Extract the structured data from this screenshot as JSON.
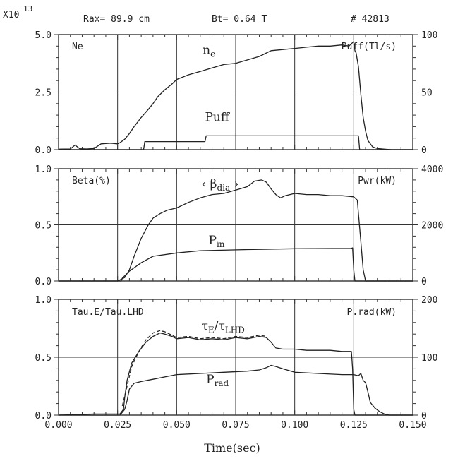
{
  "header": {
    "exponent_base": "X10",
    "exponent_power": "13",
    "rax": "Rax= 89.9 cm",
    "bt": "Bt= 0.64 T",
    "shot": "# 42813"
  },
  "chart_data": [
    {
      "type": "line",
      "panel": "top",
      "corner_left": "Ne",
      "corner_right": "Puff(Tl/s)",
      "xlim": [
        0.0,
        0.15
      ],
      "ylim_left": [
        0.0,
        5.0
      ],
      "ylim_right": [
        0,
        100
      ],
      "ytick_labels_left": [
        "0.0",
        "2.5",
        "5.0"
      ],
      "ytick_labels_right": [
        "0",
        "50",
        "100"
      ],
      "series": [
        {
          "name": "ne",
          "label_main": "n",
          "label_sub": "e",
          "axis": "left",
          "x": [
            0.0,
            0.005,
            0.007,
            0.009,
            0.012,
            0.015,
            0.018,
            0.022,
            0.025,
            0.026,
            0.028,
            0.03,
            0.032,
            0.035,
            0.038,
            0.04,
            0.042,
            0.045,
            0.048,
            0.05,
            0.055,
            0.06,
            0.065,
            0.07,
            0.075,
            0.08,
            0.085,
            0.09,
            0.095,
            0.1,
            0.105,
            0.11,
            0.115,
            0.12,
            0.123,
            0.125,
            0.1255,
            0.126,
            0.127,
            0.128,
            0.129,
            0.13,
            0.131,
            0.133,
            0.135,
            0.138,
            0.141,
            0.15
          ],
          "y": [
            0.02,
            0.03,
            0.2,
            0.04,
            0.03,
            0.05,
            0.25,
            0.28,
            0.25,
            0.3,
            0.45,
            0.7,
            1.0,
            1.4,
            1.75,
            2.0,
            2.3,
            2.6,
            2.85,
            3.05,
            3.25,
            3.4,
            3.55,
            3.7,
            3.75,
            3.9,
            4.05,
            4.3,
            4.35,
            4.4,
            4.45,
            4.5,
            4.5,
            4.55,
            4.5,
            4.7,
            4.3,
            4.2,
            3.6,
            2.4,
            1.4,
            0.8,
            0.4,
            0.12,
            0.05,
            0.02,
            0.0,
            0.0
          ]
        },
        {
          "name": "Puff",
          "label_main": "Puff",
          "label_sub": "",
          "axis": "right",
          "x": [
            0.0,
            0.036,
            0.0365,
            0.062,
            0.0625,
            0.127,
            0.1275,
            0.15
          ],
          "y": [
            0,
            0,
            7,
            7,
            12,
            12,
            0,
            0
          ]
        }
      ]
    },
    {
      "type": "line",
      "panel": "middle",
      "corner_left": "Beta(%)",
      "corner_right": "Pwr(kW)",
      "xlim": [
        0.0,
        0.15
      ],
      "ylim_left": [
        0.0,
        1.0
      ],
      "ylim_right": [
        0,
        4000
      ],
      "ytick_labels_left": [
        "0.0",
        "0.5",
        "1.0"
      ],
      "ytick_labels_right": [
        "0",
        "2000",
        "4000"
      ],
      "series": [
        {
          "name": "βdia",
          "label_main": "‹ β",
          "label_sub": "dia",
          "label_after": " ›",
          "axis": "left",
          "x": [
            0.0,
            0.025,
            0.028,
            0.03,
            0.032,
            0.035,
            0.038,
            0.04,
            0.043,
            0.046,
            0.05,
            0.055,
            0.06,
            0.065,
            0.07,
            0.075,
            0.08,
            0.083,
            0.086,
            0.088,
            0.09,
            0.092,
            0.094,
            0.096,
            0.098,
            0.1,
            0.105,
            0.11,
            0.115,
            0.12,
            0.125,
            0.1265,
            0.127,
            0.128,
            0.129,
            0.13,
            0.131,
            0.15
          ],
          "y": [
            0.0,
            0.0,
            0.03,
            0.1,
            0.22,
            0.38,
            0.5,
            0.56,
            0.6,
            0.63,
            0.65,
            0.7,
            0.74,
            0.77,
            0.78,
            0.81,
            0.84,
            0.89,
            0.9,
            0.88,
            0.82,
            0.77,
            0.74,
            0.76,
            0.77,
            0.78,
            0.77,
            0.77,
            0.76,
            0.76,
            0.75,
            0.72,
            0.6,
            0.35,
            0.1,
            0.0,
            0.0,
            0.0
          ]
        },
        {
          "name": "Pin",
          "label_main": "P",
          "label_sub": "in",
          "axis": "right",
          "x": [
            0.0,
            0.0265,
            0.027,
            0.03,
            0.035,
            0.04,
            0.05,
            0.06,
            0.08,
            0.1,
            0.124,
            0.1245,
            0.125,
            0.1255,
            0.15
          ],
          "y": [
            0,
            0,
            100,
            350,
            650,
            880,
            1000,
            1080,
            1120,
            1150,
            1160,
            1180,
            400,
            0,
            0
          ]
        }
      ]
    },
    {
      "type": "line",
      "panel": "bottom",
      "corner_left": "Tau.E/Tau.LHD",
      "corner_right": "P.rad(kW)",
      "xlabel": "Time(sec)",
      "xlim": [
        0.0,
        0.15
      ],
      "ylim_left": [
        0.0,
        1.0
      ],
      "ylim_right": [
        0,
        200
      ],
      "xtick_labels": [
        "0.000",
        "0.025",
        "0.050",
        "0.075",
        "0.100",
        "0.125",
        "0.150"
      ],
      "ytick_labels_left": [
        "0.0",
        "0.5",
        "1.0"
      ],
      "ytick_labels_right": [
        "0",
        "100",
        "200"
      ],
      "series": [
        {
          "name": "τE/τLHD",
          "label_main": "τ",
          "label_sub": "E",
          "label_mid": "/τ",
          "label_sub2": "LHD",
          "axis": "left",
          "x": [
            0.0,
            0.015,
            0.026,
            0.0275,
            0.028,
            0.029,
            0.031,
            0.034,
            0.037,
            0.04,
            0.043,
            0.045,
            0.048,
            0.05,
            0.055,
            0.06,
            0.065,
            0.07,
            0.075,
            0.08,
            0.085,
            0.088,
            0.09,
            0.092,
            0.095,
            0.1,
            0.105,
            0.11,
            0.115,
            0.12,
            0.124,
            0.1245,
            0.125,
            0.1255,
            0.15
          ],
          "y": [
            0.0,
            0.01,
            0.01,
            0.05,
            0.15,
            0.3,
            0.45,
            0.55,
            0.63,
            0.68,
            0.71,
            0.7,
            0.68,
            0.66,
            0.67,
            0.65,
            0.66,
            0.65,
            0.67,
            0.66,
            0.68,
            0.67,
            0.63,
            0.58,
            0.57,
            0.57,
            0.56,
            0.56,
            0.56,
            0.55,
            0.55,
            0.4,
            0.05,
            0.0,
            0.0
          ]
        },
        {
          "name": "τE/τLHD (dashed)",
          "label_main": "",
          "axis": "left",
          "dashed": true,
          "x": [
            0.027,
            0.029,
            0.031,
            0.034,
            0.037,
            0.04,
            0.043,
            0.045,
            0.048,
            0.05,
            0.055,
            0.06,
            0.065,
            0.07,
            0.075,
            0.08,
            0.085,
            0.088
          ],
          "y": [
            0.08,
            0.25,
            0.42,
            0.55,
            0.65,
            0.71,
            0.73,
            0.72,
            0.69,
            0.67,
            0.68,
            0.66,
            0.67,
            0.66,
            0.68,
            0.67,
            0.69,
            0.68
          ]
        },
        {
          "name": "Prad",
          "label_main": "P",
          "label_sub": "rad",
          "axis": "right",
          "x": [
            0.0,
            0.026,
            0.027,
            0.028,
            0.029,
            0.03,
            0.032,
            0.035,
            0.04,
            0.045,
            0.05,
            0.06,
            0.07,
            0.08,
            0.085,
            0.088,
            0.09,
            0.092,
            0.095,
            0.1,
            0.11,
            0.12,
            0.125,
            0.127,
            0.128,
            0.129,
            0.13,
            0.131,
            0.132,
            0.134,
            0.136,
            0.138,
            0.14,
            0.15
          ],
          "y": [
            0,
            0,
            5,
            10,
            25,
            45,
            55,
            58,
            62,
            66,
            70,
            72,
            74,
            76,
            78,
            82,
            86,
            84,
            80,
            74,
            72,
            70,
            70,
            68,
            72,
            60,
            56,
            40,
            22,
            12,
            6,
            2,
            0,
            0
          ]
        }
      ]
    }
  ]
}
